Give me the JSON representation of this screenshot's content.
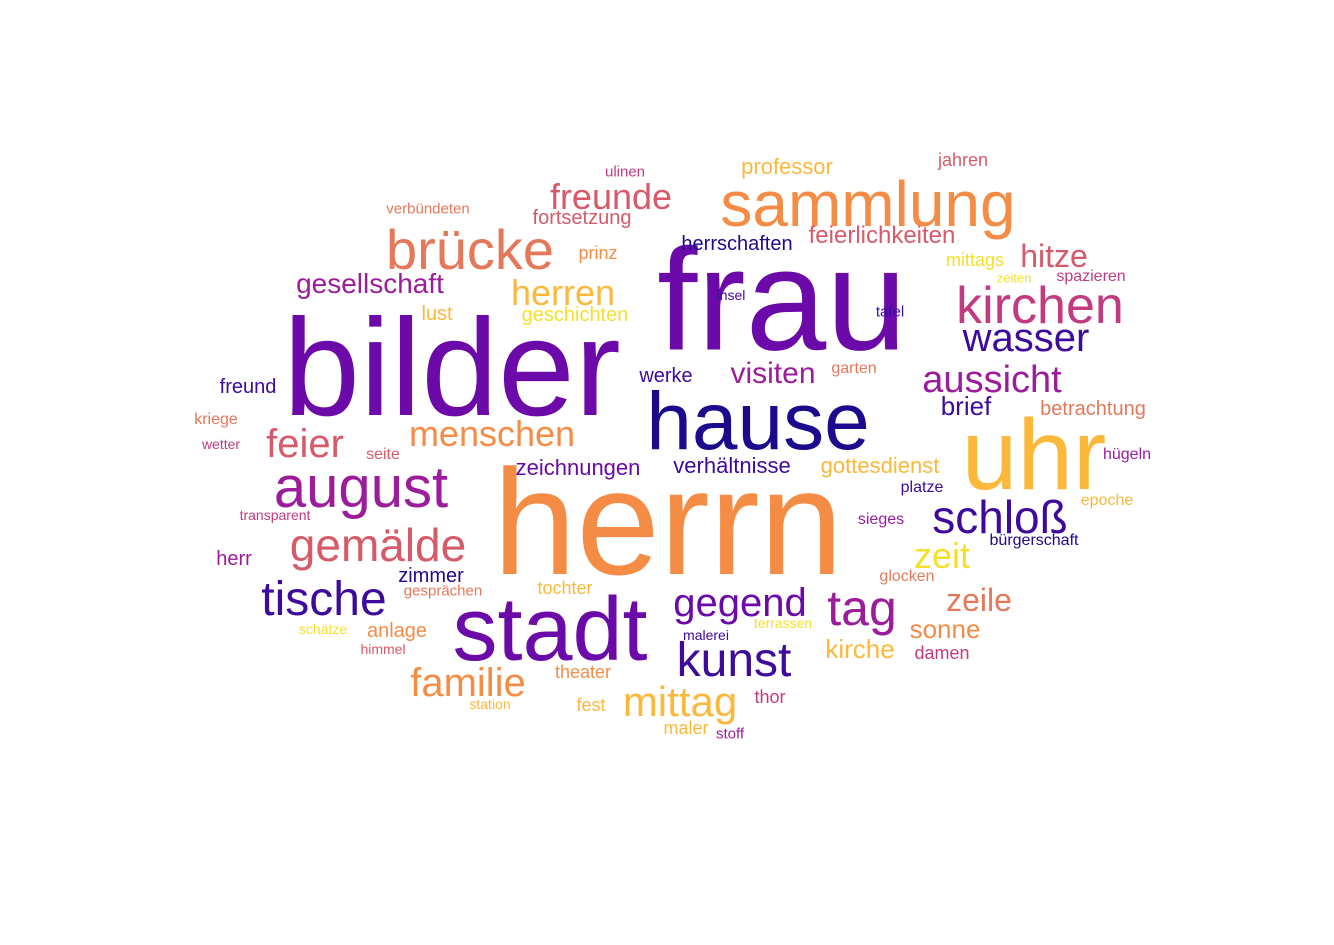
{
  "palette": {
    "dark_indigo": "#1c0a8c",
    "indigo": "#3d0a9c",
    "purple": "#6b0aa8",
    "magenta": "#9c1c9c",
    "pink": "#c23a80",
    "rose": "#d65a6a",
    "salmon": "#e4785a",
    "orange": "#f58c46",
    "amber": "#fbb83a",
    "yellow": "#f5df2a"
  },
  "words": [
    {
      "text": "herrn",
      "color": "orange"
    },
    {
      "text": "frau",
      "color": "purple"
    },
    {
      "text": "bilder",
      "color": "purple"
    },
    {
      "text": "hause",
      "color": "dark_indigo"
    },
    {
      "text": "uhr",
      "color": "amber"
    },
    {
      "text": "stadt",
      "color": "purple"
    },
    {
      "text": "sammlung",
      "color": "orange"
    },
    {
      "text": "brücke",
      "color": "salmon"
    },
    {
      "text": "kirchen",
      "color": "pink"
    },
    {
      "text": "august",
      "color": "magenta"
    },
    {
      "text": "gemälde",
      "color": "rose"
    },
    {
      "text": "tische",
      "color": "indigo"
    },
    {
      "text": "schloß",
      "color": "indigo"
    },
    {
      "text": "tag",
      "color": "magenta"
    },
    {
      "text": "kunst",
      "color": "indigo"
    },
    {
      "text": "mittag",
      "color": "amber"
    },
    {
      "text": "familie",
      "color": "orange"
    },
    {
      "text": "gegend",
      "color": "purple"
    },
    {
      "text": "freunde",
      "color": "rose"
    },
    {
      "text": "wasser",
      "color": "indigo"
    },
    {
      "text": "aussicht",
      "color": "magenta"
    },
    {
      "text": "menschen",
      "color": "orange"
    },
    {
      "text": "feier",
      "color": "rose"
    },
    {
      "text": "herren",
      "color": "amber"
    },
    {
      "text": "zeit",
      "color": "yellow"
    },
    {
      "text": "hitze",
      "color": "rose"
    },
    {
      "text": "visiten",
      "color": "magenta"
    },
    {
      "text": "zeile",
      "color": "salmon"
    },
    {
      "text": "gesellschaft",
      "color": "magenta"
    },
    {
      "text": "brief",
      "color": "indigo"
    },
    {
      "text": "sonne",
      "color": "orange"
    },
    {
      "text": "kirche",
      "color": "amber"
    },
    {
      "text": "feierlichkeiten",
      "color": "rose"
    },
    {
      "text": "zeichnungen",
      "color": "purple"
    },
    {
      "text": "verhältnisse",
      "color": "indigo"
    },
    {
      "text": "gottesdienst",
      "color": "amber"
    },
    {
      "text": "professor",
      "color": "amber"
    },
    {
      "text": "herrschaften",
      "color": "dark_indigo"
    },
    {
      "text": "geschichten",
      "color": "yellow"
    },
    {
      "text": "betrachtung",
      "color": "salmon"
    },
    {
      "text": "werke",
      "color": "indigo"
    },
    {
      "text": "fortsetzung",
      "color": "rose"
    },
    {
      "text": "jahren",
      "color": "rose"
    },
    {
      "text": "freund",
      "color": "indigo"
    },
    {
      "text": "mittags",
      "color": "yellow"
    },
    {
      "text": "zimmer",
      "color": "dark_indigo"
    },
    {
      "text": "anlage",
      "color": "orange"
    },
    {
      "text": "tochter",
      "color": "amber"
    },
    {
      "text": "theater",
      "color": "orange"
    },
    {
      "text": "damen",
      "color": "pink"
    },
    {
      "text": "maler",
      "color": "amber"
    },
    {
      "text": "prinz",
      "color": "orange"
    },
    {
      "text": "lust",
      "color": "amber"
    },
    {
      "text": "herr",
      "color": "magenta"
    },
    {
      "text": "thor",
      "color": "pink"
    },
    {
      "text": "fest",
      "color": "amber"
    },
    {
      "text": "kriege",
      "color": "salmon"
    },
    {
      "text": "seite",
      "color": "rose"
    },
    {
      "text": "garten",
      "color": "salmon"
    },
    {
      "text": "hügeln",
      "color": "magenta"
    },
    {
      "text": "spazieren",
      "color": "pink"
    },
    {
      "text": "epoche",
      "color": "amber"
    },
    {
      "text": "platze",
      "color": "indigo"
    },
    {
      "text": "sieges",
      "color": "magenta"
    },
    {
      "text": "bürgerschaft",
      "color": "dark_indigo"
    },
    {
      "text": "glocken",
      "color": "salmon"
    },
    {
      "text": "malerei",
      "color": "indigo"
    },
    {
      "text": "terrassen",
      "color": "yellow"
    },
    {
      "text": "gesprächen",
      "color": "salmon"
    },
    {
      "text": "schätze",
      "color": "yellow"
    },
    {
      "text": "himmel",
      "color": "rose"
    },
    {
      "text": "station",
      "color": "amber"
    },
    {
      "text": "stoff",
      "color": "magenta"
    },
    {
      "text": "ulinen",
      "color": "pink"
    },
    {
      "text": "verbündeten",
      "color": "salmon"
    },
    {
      "text": "insel",
      "color": "indigo"
    },
    {
      "text": "tafel",
      "color": "indigo"
    },
    {
      "text": "zeiten",
      "color": "yellow"
    },
    {
      "text": "wetter",
      "color": "pink"
    },
    {
      "text": "transparent",
      "color": "pink"
    }
  ]
}
